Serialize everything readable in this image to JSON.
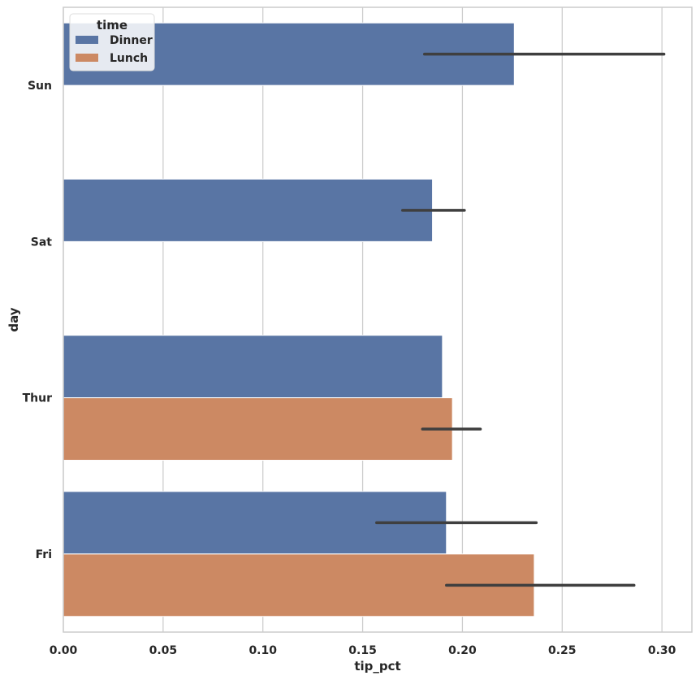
{
  "chart_data": {
    "type": "bar",
    "orientation": "horizontal",
    "categories": [
      "Sun",
      "Sat",
      "Thur",
      "Fri"
    ],
    "series": [
      {
        "name": "Dinner",
        "color": "#5975a4",
        "values": [
          0.226,
          0.185,
          0.19,
          0.192
        ],
        "ci_low": [
          0.181,
          0.17,
          null,
          0.157
        ],
        "ci_high": [
          0.301,
          0.201,
          null,
          0.237
        ]
      },
      {
        "name": "Lunch",
        "color": "#cc8963",
        "values": [
          null,
          null,
          0.195,
          0.236
        ],
        "ci_low": [
          null,
          null,
          0.18,
          0.192
        ],
        "ci_high": [
          null,
          null,
          0.209,
          0.286
        ]
      }
    ],
    "xlabel": "tip_pct",
    "ylabel": "day",
    "xlim": [
      0.0,
      0.315
    ],
    "xticks": [
      0.0,
      0.05,
      0.1,
      0.15,
      0.2,
      0.25,
      0.3
    ],
    "xtick_labels": [
      "0.00",
      "0.05",
      "0.10",
      "0.15",
      "0.20",
      "0.25",
      "0.30"
    ],
    "grid": "x",
    "legend": {
      "title": "time",
      "placement": "top-left"
    }
  }
}
